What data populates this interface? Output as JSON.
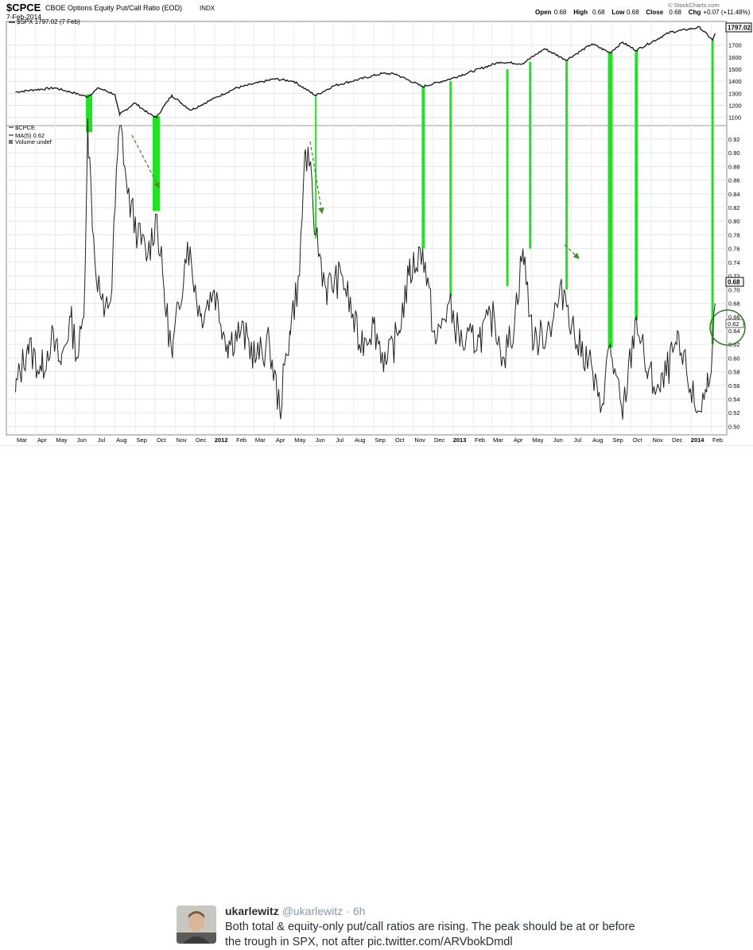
{
  "chart_header": {
    "symbol": "$CPCE",
    "name": "CBOE Options Equity Put/Call Ratio (EOD)",
    "exchange": "INDX",
    "date": "7-Feb-2014",
    "spx_legend": "$SPX 1797.02 (7 Feb)",
    "copyright": "© StockCharts.com",
    "quote": [
      {
        "label": "Open",
        "value": "0.68"
      },
      {
        "label": "High",
        "value": "0.68"
      },
      {
        "label": "Low",
        "value": "0.68"
      },
      {
        "label": "Close",
        "value": "0.68"
      },
      {
        "label": "Chg",
        "value": "+0.07 (+11.48%)"
      }
    ],
    "quote_arrow": "▲"
  },
  "lower_legend": {
    "symbol": "$CPCE",
    "ma": "MA(5) 0.62",
    "volume": "Volume undef"
  },
  "price_badges": {
    "spx_last": "1797.02",
    "cpce_last": "0.68",
    "ma_last": "0.62"
  },
  "colors": {
    "line": "#222222",
    "highlight": "#22e022",
    "arrow": "#4a8a2a",
    "circle": "#3a7a2a",
    "grid": "#dddddd"
  },
  "chart_data": [
    {
      "type": "line",
      "title": "$SPX",
      "y_ticks": [
        1100,
        1200,
        1300,
        1400,
        1500,
        1600,
        1700
      ],
      "ylim": [
        1045,
        1850
      ],
      "series": [
        {
          "name": "$SPX 1797.02 (7 Feb)",
          "points": [
            [
              "2011-03-01",
              1310
            ],
            [
              "2011-04-01",
              1330
            ],
            [
              "2011-05-01",
              1345
            ],
            [
              "2011-06-01",
              1300
            ],
            [
              "2011-06-20",
              1270
            ],
            [
              "2011-07-07",
              1345
            ],
            [
              "2011-08-01",
              1290
            ],
            [
              "2011-08-08",
              1120
            ],
            [
              "2011-08-31",
              1220
            ],
            [
              "2011-09-22",
              1130
            ],
            [
              "2011-10-04",
              1100
            ],
            [
              "2011-10-27",
              1285
            ],
            [
              "2011-11-25",
              1160
            ],
            [
              "2011-12-31",
              1258
            ],
            [
              "2012-02-01",
              1340
            ],
            [
              "2012-04-02",
              1420
            ],
            [
              "2012-05-01",
              1400
            ],
            [
              "2012-06-04",
              1280
            ],
            [
              "2012-07-01",
              1360
            ],
            [
              "2012-09-14",
              1465
            ],
            [
              "2012-10-05",
              1460
            ],
            [
              "2012-11-15",
              1355
            ],
            [
              "2012-12-31",
              1425
            ],
            [
              "2013-03-14",
              1560
            ],
            [
              "2013-04-18",
              1545
            ],
            [
              "2013-05-21",
              1670
            ],
            [
              "2013-06-24",
              1575
            ],
            [
              "2013-08-02",
              1710
            ],
            [
              "2013-08-30",
              1635
            ],
            [
              "2013-09-18",
              1725
            ],
            [
              "2013-10-09",
              1655
            ],
            [
              "2013-11-29",
              1805
            ],
            [
              "2014-01-15",
              1848
            ],
            [
              "2014-02-03",
              1742
            ],
            [
              "2014-02-07",
              1797
            ]
          ]
        }
      ]
    },
    {
      "type": "line",
      "title": "$CPCE",
      "y_ticks": [
        0.5,
        0.52,
        0.54,
        0.56,
        0.58,
        0.6,
        0.62,
        0.64,
        0.66,
        0.68,
        0.7,
        0.72,
        0.74,
        0.76,
        0.78,
        0.8,
        0.82,
        0.84,
        0.86,
        0.88,
        0.9,
        0.92
      ],
      "ylim": [
        0.49,
        0.935
      ],
      "x_ticks": [
        "Mar",
        "Apr",
        "May",
        "Jun",
        "Jul",
        "Aug",
        "Sep",
        "Oct",
        "Nov",
        "Dec",
        "2012",
        "Feb",
        "Mar",
        "Apr",
        "May",
        "Jun",
        "Jul",
        "Aug",
        "Sep",
        "Oct",
        "Nov",
        "Dec",
        "2013",
        "Feb",
        "Mar",
        "Apr",
        "May",
        "Jun",
        "Jul",
        "Aug",
        "Sep",
        "Oct",
        "Nov",
        "Dec",
        "2014",
        "Feb"
      ],
      "series": [
        {
          "name": "$CPCE",
          "points": [
            [
              "2011-03-01",
              0.55
            ],
            [
              "2011-03-20",
              0.62
            ],
            [
              "2011-04-10",
              0.58
            ],
            [
              "2011-04-25",
              0.63
            ],
            [
              "2011-05-10",
              0.59
            ],
            [
              "2011-05-25",
              0.66
            ],
            [
              "2011-06-05",
              0.6
            ],
            [
              "2011-06-14",
              0.66
            ],
            [
              "2011-06-20",
              0.95
            ],
            [
              "2011-07-01",
              0.74
            ],
            [
              "2011-07-15",
              0.66
            ],
            [
              "2011-07-27",
              0.7
            ],
            [
              "2011-08-05",
              0.9
            ],
            [
              "2011-08-10",
              0.94
            ],
            [
              "2011-08-20",
              0.84
            ],
            [
              "2011-09-05",
              0.78
            ],
            [
              "2011-09-20",
              0.75
            ],
            [
              "2011-10-04",
              0.81
            ],
            [
              "2011-10-15",
              0.7
            ],
            [
              "2011-10-28",
              0.6
            ],
            [
              "2011-11-20",
              0.77
            ],
            [
              "2011-12-10",
              0.66
            ],
            [
              "2011-12-31",
              0.7
            ],
            [
              "2012-01-20",
              0.62
            ],
            [
              "2012-02-10",
              0.64
            ],
            [
              "2012-03-05",
              0.6
            ],
            [
              "2012-03-25",
              0.62
            ],
            [
              "2012-04-10",
              0.52
            ],
            [
              "2012-04-25",
              0.64
            ],
            [
              "2012-05-10",
              0.72
            ],
            [
              "2012-05-18",
              0.9
            ],
            [
              "2012-05-25",
              0.88
            ],
            [
              "2012-06-04",
              0.78
            ],
            [
              "2012-06-20",
              0.7
            ],
            [
              "2012-07-15",
              0.72
            ],
            [
              "2012-08-10",
              0.62
            ],
            [
              "2012-09-01",
              0.65
            ],
            [
              "2012-09-20",
              0.59
            ],
            [
              "2012-10-10",
              0.64
            ],
            [
              "2012-10-25",
              0.72
            ],
            [
              "2012-11-15",
              0.76
            ],
            [
              "2012-12-05",
              0.62
            ],
            [
              "2012-12-25",
              0.68
            ],
            [
              "2013-01-15",
              0.62
            ],
            [
              "2013-02-10",
              0.63
            ],
            [
              "2013-03-05",
              0.66
            ],
            [
              "2013-03-20",
              0.6
            ],
            [
              "2013-04-05",
              0.65
            ],
            [
              "2013-04-18",
              0.76
            ],
            [
              "2013-05-05",
              0.62
            ],
            [
              "2013-05-25",
              0.64
            ],
            [
              "2013-06-20",
              0.7
            ],
            [
              "2013-07-10",
              0.62
            ],
            [
              "2013-07-28",
              0.6
            ],
            [
              "2013-08-15",
              0.52
            ],
            [
              "2013-08-30",
              0.62
            ],
            [
              "2013-09-18",
              0.51
            ],
            [
              "2013-10-09",
              0.66
            ],
            [
              "2013-10-25",
              0.58
            ],
            [
              "2013-11-15",
              0.55
            ],
            [
              "2013-12-10",
              0.62
            ],
            [
              "2013-12-25",
              0.58
            ],
            [
              "2014-01-10",
              0.52
            ],
            [
              "2014-01-25",
              0.55
            ],
            [
              "2014-02-03",
              0.62
            ],
            [
              "2014-02-07",
              0.68
            ]
          ]
        }
      ]
    }
  ],
  "tweet": {
    "author_name": "ukarlewitz",
    "handle": "@ukarlewitz",
    "separator": "·",
    "time": "6h",
    "text": "Both total & equity-only put/call ratios are rising. The peak should be at or before the trough in SPX, not after pic.twitter.com/ARVbokDmdl"
  }
}
